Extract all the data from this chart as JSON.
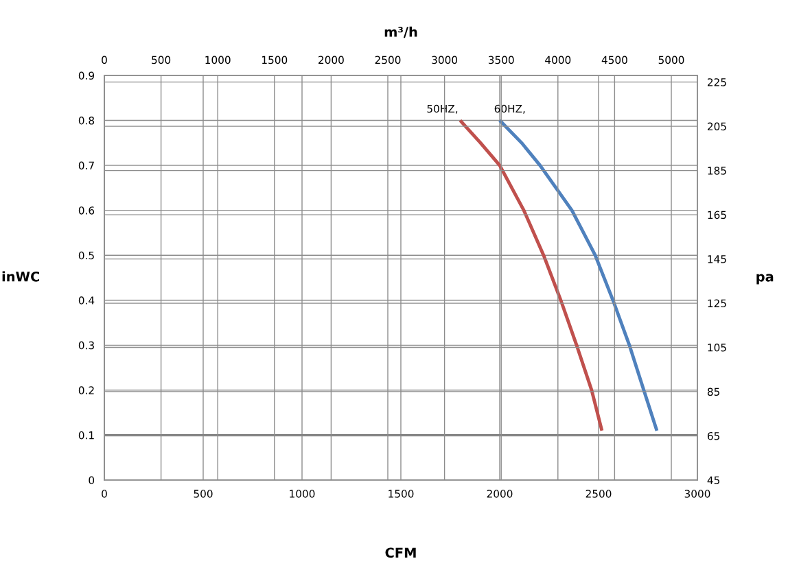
{
  "chart_data": {
    "type": "line",
    "xlabel": "CFM",
    "ylabel": "inWC",
    "y2label": "pa",
    "x2label": "m³/h",
    "xlim": [
      0,
      3000
    ],
    "xticks": [
      0,
      500,
      1000,
      1500,
      2000,
      2500,
      3000
    ],
    "ylim": [
      0,
      0.9
    ],
    "yticks": [
      0,
      0.1,
      0.2,
      0.3,
      0.4,
      0.5,
      0.6,
      0.7,
      0.8,
      0.9
    ],
    "x2lim": [
      0,
      5230
    ],
    "x2ticks": [
      0,
      500,
      1000,
      1500,
      2000,
      2500,
      3000,
      3500,
      4000,
      4500,
      5000
    ],
    "y2lim": [
      45,
      228
    ],
    "y2ticks": [
      45,
      65,
      85,
      105,
      125,
      145,
      165,
      185,
      205,
      225
    ],
    "grid": true,
    "marker": "none",
    "line_style": "solid",
    "ref_lines": [
      {
        "axis": "y",
        "value": 0.1,
        "color": "#808080"
      }
    ],
    "series": [
      {
        "name": "50HZ,",
        "color": "#c0504d",
        "x": [
          1800,
          1903,
          2000,
          2122,
          2222,
          2309,
          2389,
          2465,
          2517
        ],
        "values": [
          0.8,
          0.75,
          0.7,
          0.6,
          0.5,
          0.4,
          0.3,
          0.2,
          0.11
        ]
      },
      {
        "name": "60HZ,",
        "color": "#4f81bd",
        "x": [
          2000,
          2111,
          2204,
          2365,
          2483,
          2573,
          2656,
          2729,
          2795
        ],
        "values": [
          0.8,
          0.75,
          0.7,
          0.6,
          0.5,
          0.4,
          0.3,
          0.2,
          0.11
        ]
      }
    ]
  }
}
